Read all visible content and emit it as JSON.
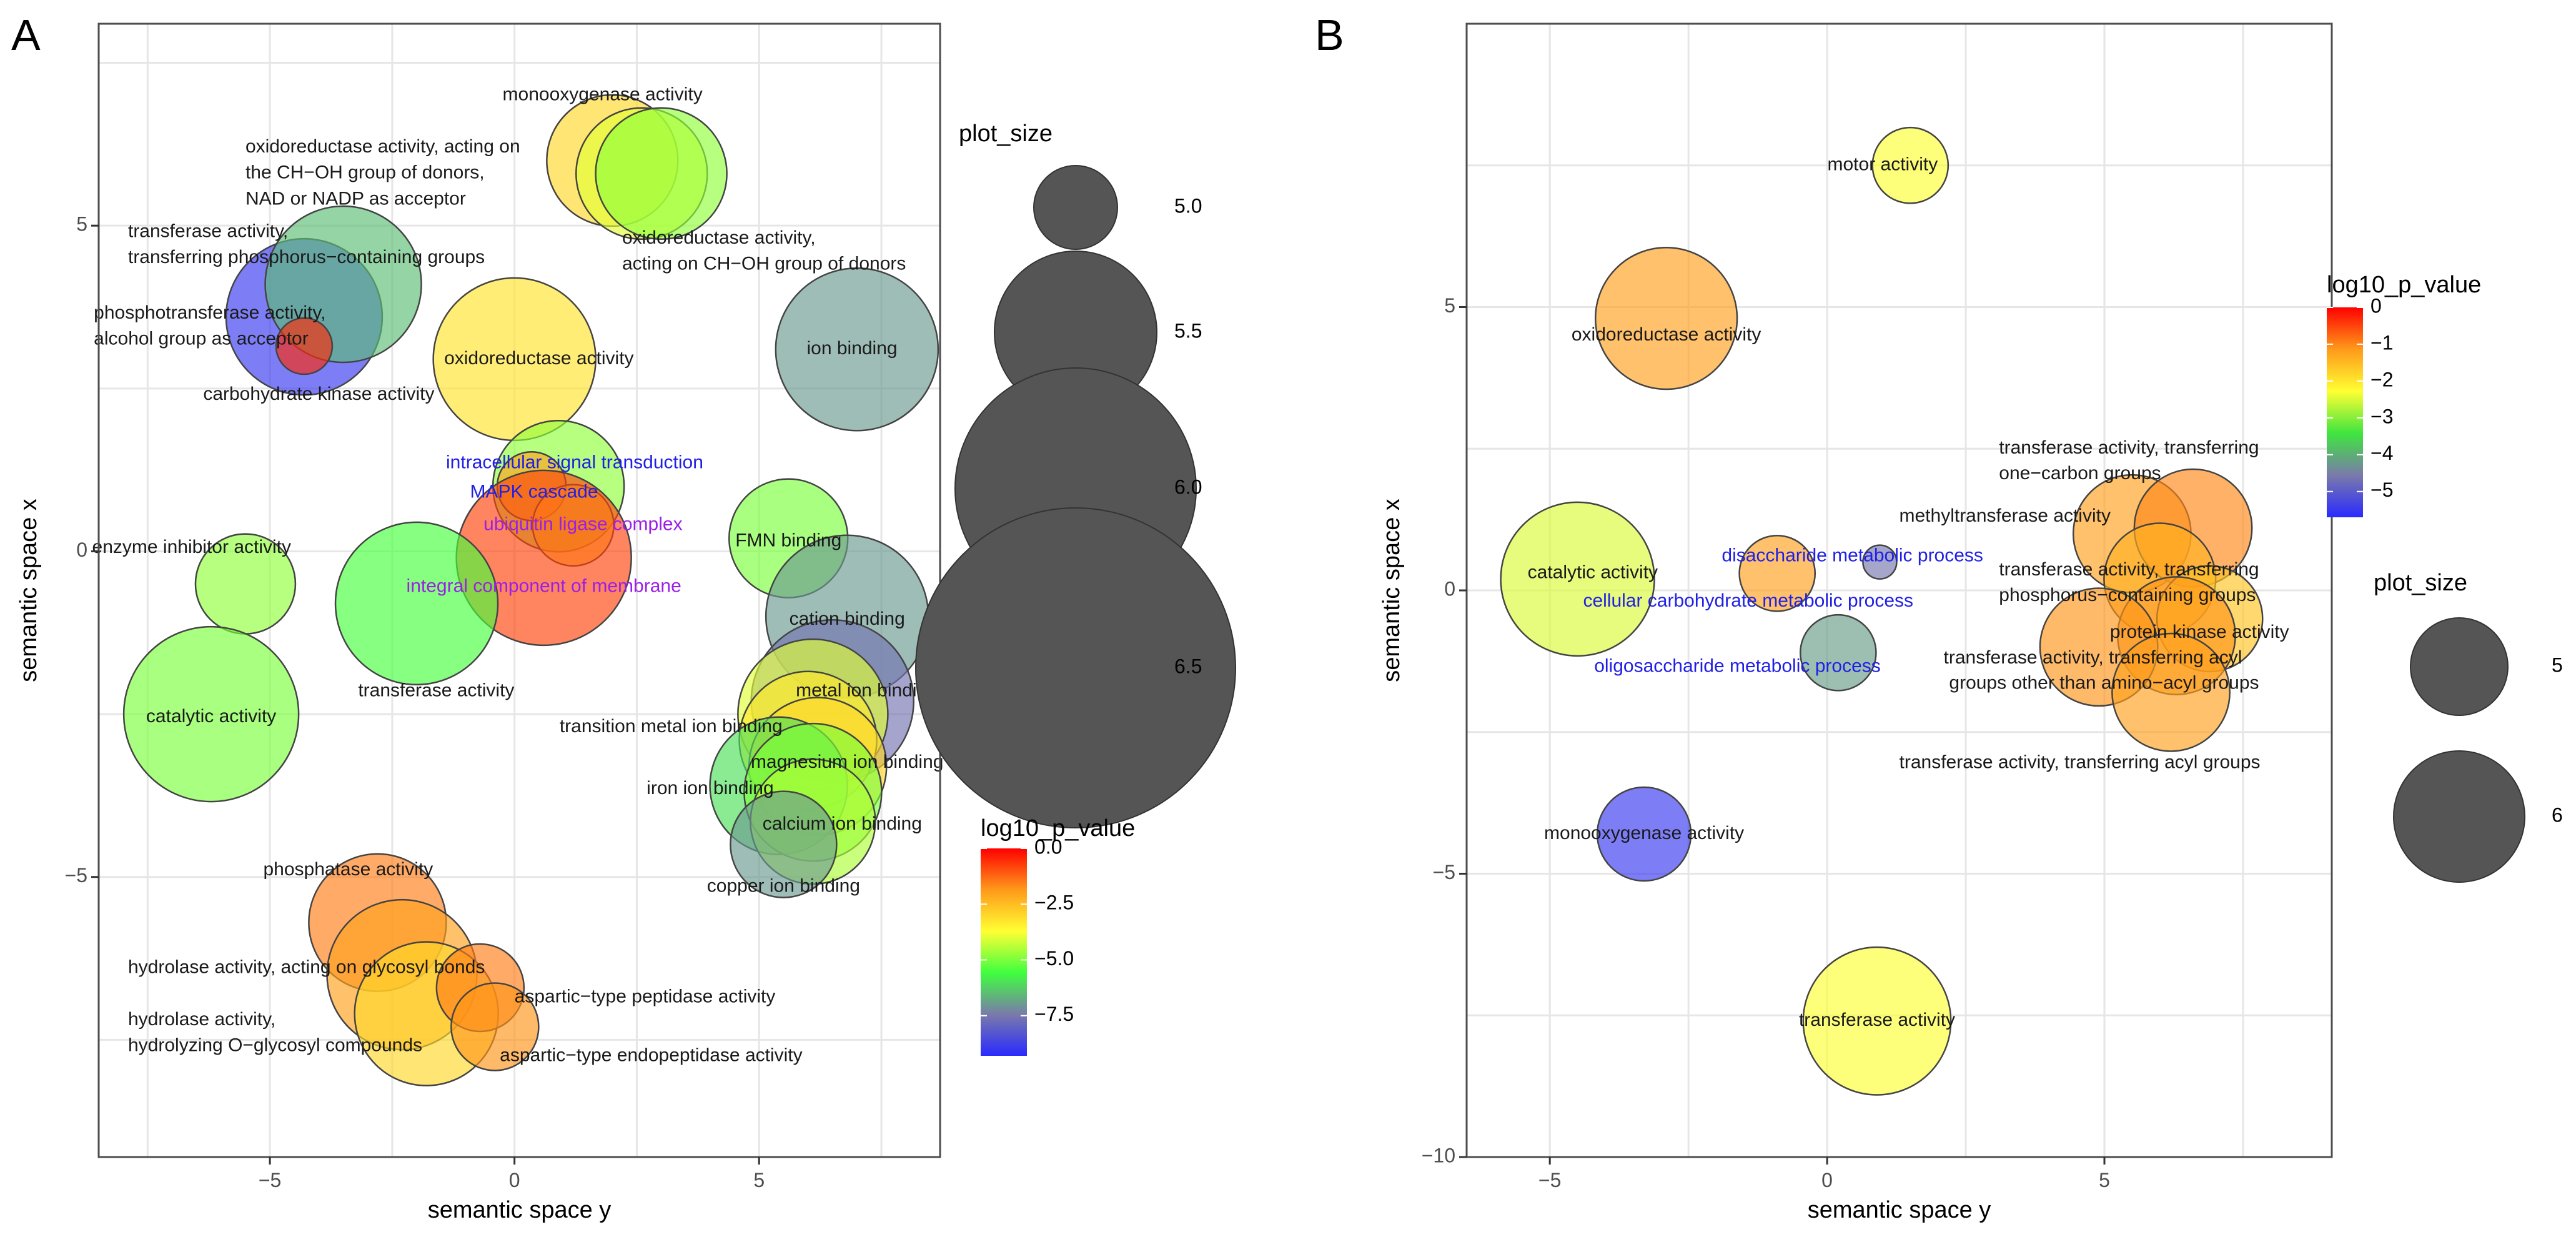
{
  "figure": {
    "panel_labels": [
      "A",
      "B"
    ]
  },
  "chart_data": [
    {
      "panel": "A",
      "type": "scatter",
      "xlabel": "semantic space y",
      "ylabel": "semantic space x",
      "xlim": [
        -8.5,
        8.7
      ],
      "ylim": [
        -9.3,
        8.1
      ],
      "xticks": [
        -5,
        0,
        5
      ],
      "yticks": [
        -5,
        0,
        5
      ],
      "xtick_labels": [
        "−5",
        "0",
        "5"
      ],
      "ytick_labels": [
        "−5",
        "0",
        "5"
      ],
      "grid": true,
      "points": [
        {
          "x": -4.3,
          "y": 3.6,
          "size": 6.2,
          "p": -9.0
        },
        {
          "x": -3.5,
          "y": 4.1,
          "size": 6.2,
          "p": -6.5
        },
        {
          "x": -4.3,
          "y": 3.15,
          "size": 4.6,
          "p": -0.5
        },
        {
          "x": 2.0,
          "y": 6.0,
          "size": 5.8,
          "p": -3.0
        },
        {
          "x": 2.6,
          "y": 5.8,
          "size": 5.8,
          "p": -4.0
        },
        {
          "x": 3.0,
          "y": 5.8,
          "size": 5.8,
          "p": -4.8
        },
        {
          "x": 0.0,
          "y": 2.95,
          "size": 6.3,
          "p": -3.2
        },
        {
          "x": 7.0,
          "y": 3.1,
          "size": 6.3,
          "p": -7.0
        },
        {
          "x": 0.9,
          "y": 1.0,
          "size": 5.8,
          "p": -4.8
        },
        {
          "x": 0.35,
          "y": 1.0,
          "size": 4.8,
          "p": -2.0
        },
        {
          "x": 1.2,
          "y": 0.4,
          "size": 5.0,
          "p": -3.0
        },
        {
          "x": 0.6,
          "y": -0.1,
          "size": 6.5,
          "p": -0.8
        },
        {
          "x": 5.6,
          "y": 0.2,
          "size": 5.6,
          "p": -5.0
        },
        {
          "x": 6.8,
          "y": -1.0,
          "size": 6.3,
          "p": -7.0
        },
        {
          "x": -5.5,
          "y": -0.5,
          "size": 5.3,
          "p": -4.8
        },
        {
          "x": -2.0,
          "y": -0.8,
          "size": 6.3,
          "p": -5.5
        },
        {
          "x": -6.2,
          "y": -2.5,
          "size": 6.5,
          "p": -5.0
        },
        {
          "x": 6.5,
          "y": -2.3,
          "size": 6.3,
          "p": -7.6
        },
        {
          "x": 6.1,
          "y": -2.5,
          "size": 6.1,
          "p": -4.0
        },
        {
          "x": 6.0,
          "y": -2.9,
          "size": 5.9,
          "p": -3.3
        },
        {
          "x": 6.2,
          "y": -3.3,
          "size": 5.9,
          "p": -3.0
        },
        {
          "x": 5.4,
          "y": -3.6,
          "size": 5.9,
          "p": -6.0
        },
        {
          "x": 6.1,
          "y": -3.7,
          "size": 5.9,
          "p": -5.0
        },
        {
          "x": 6.1,
          "y": -4.15,
          "size": 5.7,
          "p": -4.5
        },
        {
          "x": 5.5,
          "y": -4.5,
          "size": 5.4,
          "p": -7.0
        },
        {
          "x": -2.8,
          "y": -5.7,
          "size": 5.9,
          "p": -1.5
        },
        {
          "x": -2.3,
          "y": -6.5,
          "size": 6.1,
          "p": -2.0
        },
        {
          "x": -1.8,
          "y": -7.1,
          "size": 6.0,
          "p": -3.0
        },
        {
          "x": -0.7,
          "y": -6.7,
          "size": 5.1,
          "p": -1.5
        },
        {
          "x": -0.4,
          "y": -7.3,
          "size": 5.1,
          "p": -1.8
        }
      ],
      "labels": [
        {
          "x": 1.8,
          "y": 7.0,
          "text": "monooxygenase activity",
          "color": "#1a1a1a",
          "anchor": "middle"
        },
        {
          "x": -5.5,
          "y": 6.2,
          "text": "oxidoreductase activity, acting on",
          "color": "#1a1a1a",
          "anchor": "start"
        },
        {
          "x": -5.5,
          "y": 5.8,
          "text": "the CH−OH group of donors,",
          "color": "#1a1a1a",
          "anchor": "start"
        },
        {
          "x": -5.5,
          "y": 5.4,
          "text": "NAD or NADP as acceptor",
          "color": "#1a1a1a",
          "anchor": "start"
        },
        {
          "x": 2.2,
          "y": 4.8,
          "text": "oxidoreductase activity,",
          "color": "#1a1a1a",
          "anchor": "start"
        },
        {
          "x": 2.2,
          "y": 4.4,
          "text": "acting on CH−OH group of donors",
          "color": "#1a1a1a",
          "anchor": "start"
        },
        {
          "x": -7.9,
          "y": 4.9,
          "text": "transferase activity,",
          "color": "#1a1a1a",
          "anchor": "start"
        },
        {
          "x": -7.9,
          "y": 4.5,
          "text": "transferring phosphorus−containing groups",
          "color": "#1a1a1a",
          "anchor": "start"
        },
        {
          "x": -8.6,
          "y": 3.65,
          "text": "phosphotransferase activity,",
          "color": "#1a1a1a",
          "anchor": "start"
        },
        {
          "x": -8.6,
          "y": 3.25,
          "text": "alcohol group as acceptor",
          "color": "#1a1a1a",
          "anchor": "start"
        },
        {
          "x": 0.5,
          "y": 2.95,
          "text": "oxidoreductase activity",
          "color": "#1a1a1a",
          "anchor": "middle"
        },
        {
          "x": 6.9,
          "y": 3.1,
          "text": "ion binding",
          "color": "#1a1a1a",
          "anchor": "middle"
        },
        {
          "x": -4.0,
          "y": 2.4,
          "text": "carbohydrate kinase activity",
          "color": "#1a1a1a",
          "anchor": "middle"
        },
        {
          "x": -1.4,
          "y": 1.35,
          "text": "intracellular signal transduction",
          "color": "#1f1fe6",
          "anchor": "start"
        },
        {
          "x": 0.4,
          "y": 0.9,
          "text": "MAPK cascade",
          "color": "#1f1fe6",
          "anchor": "middle"
        },
        {
          "x": 1.4,
          "y": 0.4,
          "text": "ubiquitin ligase complex",
          "color": "#9b1fe6",
          "anchor": "middle"
        },
        {
          "x": 5.6,
          "y": 0.15,
          "text": "FMN binding",
          "color": "#1a1a1a",
          "anchor": "middle"
        },
        {
          "x": -6.6,
          "y": 0.05,
          "text": "enzyme inhibitor activity",
          "color": "#1a1a1a",
          "anchor": "middle"
        },
        {
          "x": 0.6,
          "y": -0.55,
          "text": "integral component of membrane",
          "color": "#9b1fe6",
          "anchor": "middle"
        },
        {
          "x": 6.8,
          "y": -1.05,
          "text": "cation binding",
          "color": "#1a1a1a",
          "anchor": "middle"
        },
        {
          "x": -1.6,
          "y": -2.15,
          "text": "transferase activity",
          "color": "#1a1a1a",
          "anchor": "middle"
        },
        {
          "x": 7.2,
          "y": -2.15,
          "text": "metal ion binding",
          "color": "#1a1a1a",
          "anchor": "middle"
        },
        {
          "x": -6.2,
          "y": -2.55,
          "text": "catalytic activity",
          "color": "#1a1a1a",
          "anchor": "middle"
        },
        {
          "x": 3.2,
          "y": -2.7,
          "text": "transition metal ion binding",
          "color": "#1a1a1a",
          "anchor": "middle"
        },
        {
          "x": 6.8,
          "y": -3.25,
          "text": "magnesium ion binding",
          "color": "#1a1a1a",
          "anchor": "middle"
        },
        {
          "x": 4.0,
          "y": -3.65,
          "text": "iron ion binding",
          "color": "#1a1a1a",
          "anchor": "middle"
        },
        {
          "x": 6.7,
          "y": -4.2,
          "text": "calcium ion binding",
          "color": "#1a1a1a",
          "anchor": "middle"
        },
        {
          "x": -3.4,
          "y": -4.9,
          "text": "phosphatase activity",
          "color": "#1a1a1a",
          "anchor": "middle"
        },
        {
          "x": 5.5,
          "y": -5.15,
          "text": "copper ion binding",
          "color": "#1a1a1a",
          "anchor": "middle"
        },
        {
          "x": -7.9,
          "y": -6.4,
          "text": "hydrolase activity, acting on glycosyl bonds",
          "color": "#1a1a1a",
          "anchor": "start"
        },
        {
          "x": 0.0,
          "y": -6.85,
          "text": "aspartic−type peptidase activity",
          "color": "#1a1a1a",
          "anchor": "start"
        },
        {
          "x": -7.9,
          "y": -7.2,
          "text": "hydrolase activity,",
          "color": "#1a1a1a",
          "anchor": "start"
        },
        {
          "x": -7.9,
          "y": -7.6,
          "text": "hydrolyzing O−glycosyl compounds",
          "color": "#1a1a1a",
          "anchor": "start"
        },
        {
          "x": -0.3,
          "y": -7.75,
          "text": "aspartic−type endopeptidase activity",
          "color": "#1a1a1a",
          "anchor": "start"
        }
      ],
      "legend_size": {
        "title": "plot_size",
        "values": [
          5.0,
          5.5,
          6.0,
          6.5
        ],
        "labels": [
          "5.0",
          "5.5",
          "6.0",
          "6.5"
        ]
      },
      "legend_color": {
        "title": "log10_p_value",
        "range": [
          -9.3,
          0
        ],
        "ticks": [
          0,
          -2.5,
          -5,
          -7.5
        ],
        "tick_labels": [
          "0.0",
          "−2.5",
          "−5.0",
          "−7.5"
        ]
      }
    },
    {
      "panel": "B",
      "type": "scatter",
      "xlabel": "semantic space y",
      "ylabel": "semantic space x",
      "xlim": [
        -6.5,
        9.1
      ],
      "ylim": [
        -10.0,
        10.0
      ],
      "xticks": [
        -5,
        0,
        5
      ],
      "yticks": [
        -10,
        -5,
        0,
        5
      ],
      "xtick_labels": [
        "−5",
        "0",
        "5"
      ],
      "ytick_labels": [
        "−10",
        "−5",
        "0",
        "5"
      ],
      "grid": true,
      "points": [
        {
          "x": 1.5,
          "y": 7.5,
          "size": 5.0,
          "p": -2.3
        },
        {
          "x": -2.9,
          "y": 4.8,
          "size": 6.1,
          "p": -1.2
        },
        {
          "x": -4.5,
          "y": 0.2,
          "size": 6.3,
          "p": -2.5
        },
        {
          "x": -0.9,
          "y": 0.3,
          "size": 5.0,
          "p": -1.2
        },
        {
          "x": 0.95,
          "y": 0.5,
          "size": 4.3,
          "p": -4.6
        },
        {
          "x": 0.2,
          "y": -1.1,
          "size": 5.0,
          "p": -4.2
        },
        {
          "x": 5.5,
          "y": 1.0,
          "size": 5.7,
          "p": -1.2
        },
        {
          "x": 6.6,
          "y": 1.1,
          "size": 5.7,
          "p": -1.0
        },
        {
          "x": 6.0,
          "y": 0.2,
          "size": 5.6,
          "p": -1.4
        },
        {
          "x": 6.9,
          "y": -0.5,
          "size": 5.5,
          "p": -1.6
        },
        {
          "x": 6.3,
          "y": -0.8,
          "size": 5.7,
          "p": -1.1
        },
        {
          "x": 4.9,
          "y": -1.0,
          "size": 5.7,
          "p": -1.1
        },
        {
          "x": 6.2,
          "y": -1.8,
          "size": 5.7,
          "p": -1.2
        },
        {
          "x": -3.3,
          "y": -4.3,
          "size": 5.3,
          "p": -5.5
        },
        {
          "x": 0.9,
          "y": -7.6,
          "size": 6.2,
          "p": -2.3
        }
      ],
      "labels": [
        {
          "x": 1.0,
          "y": 7.5,
          "text": "motor activity",
          "color": "#1a1a1a",
          "anchor": "middle"
        },
        {
          "x": -2.9,
          "y": 4.5,
          "text": "oxidoreductase activity",
          "color": "#1a1a1a",
          "anchor": "middle"
        },
        {
          "x": -5.4,
          "y": 0.3,
          "text": "catalytic activity",
          "color": "#1a1a1a",
          "anchor": "start"
        },
        {
          "x": 3.1,
          "y": 2.5,
          "text": "transferase activity, transferring",
          "color": "#1a1a1a",
          "anchor": "start"
        },
        {
          "x": 3.1,
          "y": 2.05,
          "text": "one−carbon groups",
          "color": "#1a1a1a",
          "anchor": "start"
        },
        {
          "x": 1.3,
          "y": 1.3,
          "text": "methyltransferase activity",
          "color": "#1a1a1a",
          "anchor": "start"
        },
        {
          "x": -1.9,
          "y": 0.6,
          "text": "disaccharide metabolic process",
          "color": "#1f1fe6",
          "anchor": "start"
        },
        {
          "x": 3.1,
          "y": 0.35,
          "text": "transferase activity, transferring",
          "color": "#1a1a1a",
          "anchor": "start"
        },
        {
          "x": 3.1,
          "y": -0.1,
          "text": "phosphorus−containing groups",
          "color": "#1a1a1a",
          "anchor": "start"
        },
        {
          "x": -4.4,
          "y": -0.2,
          "text": "cellular carbohydrate metabolic process",
          "color": "#1f1fe6",
          "anchor": "start"
        },
        {
          "x": 5.1,
          "y": -0.75,
          "text": "protein kinase activity",
          "color": "#1a1a1a",
          "anchor": "start"
        },
        {
          "x": 2.1,
          "y": -1.2,
          "text": "transferase activity, transferring acyl",
          "color": "#1a1a1a",
          "anchor": "start"
        },
        {
          "x": -4.2,
          "y": -1.35,
          "text": "oligosaccharide metabolic process",
          "color": "#1f1fe6",
          "anchor": "start"
        },
        {
          "x": 2.2,
          "y": -1.65,
          "text": "groups other than amino−acyl groups",
          "color": "#1a1a1a",
          "anchor": "start"
        },
        {
          "x": 1.3,
          "y": -3.05,
          "text": "transferase activity, transferring acyl groups",
          "color": "#1a1a1a",
          "anchor": "start"
        },
        {
          "x": -3.3,
          "y": -4.3,
          "text": "monooxygenase activity",
          "color": "#1a1a1a",
          "anchor": "middle"
        },
        {
          "x": 0.9,
          "y": -7.6,
          "text": "transferase activity",
          "color": "#1a1a1a",
          "anchor": "middle"
        }
      ],
      "legend_color": {
        "title": "log10_p_value",
        "range": [
          -5.7,
          0
        ],
        "ticks": [
          0,
          -1,
          -2,
          -3,
          -4,
          -5
        ],
        "tick_labels": [
          "0",
          "−1",
          "−2",
          "−3",
          "−4",
          "−5"
        ]
      },
      "legend_size": {
        "title": "plot_size",
        "values": [
          5,
          6
        ],
        "labels": [
          "5",
          "6"
        ]
      }
    }
  ],
  "palette": {
    "gradient_A": [
      "#2a2aff",
      "#7a7aaa",
      "#3fff3f",
      "#ffff33",
      "#ff9a1a",
      "#ff0000"
    ],
    "gradient_B": [
      "#2a2aff",
      "#7a7aaa",
      "#3fe53f",
      "#ffff33",
      "#ff9a1a",
      "#ff0000"
    ],
    "bubble_stroke": "#444444",
    "legend_bubble": "#555555",
    "grid": "#e6e6e6",
    "panel_border": "#4d4d4d"
  }
}
